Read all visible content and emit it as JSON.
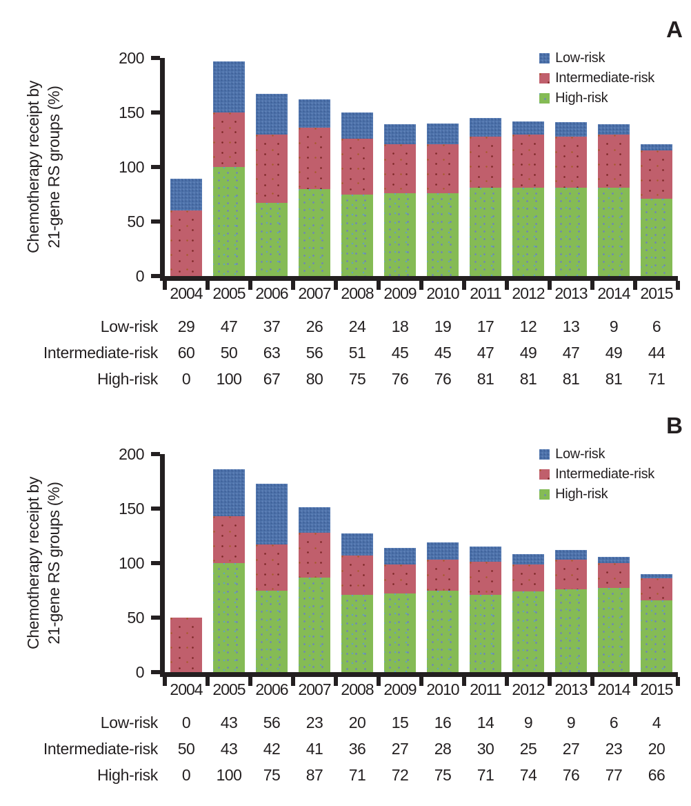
{
  "colors": {
    "low": "#4d72aa",
    "intermediate": "#c05f6c",
    "high": "#85bb55",
    "axis": "#231f20",
    "text": "#231f20",
    "background": "#ffffff"
  },
  "chart_data": [
    {
      "type": "bar",
      "stacked": true,
      "panel_label": "A",
      "title": "",
      "ylabel": [
        "Chemotherapy receipt by",
        "21-gene RS groups (%)"
      ],
      "xlabel": "",
      "ylim": [
        0,
        200
      ],
      "yticks": [
        0,
        50,
        100,
        150,
        200
      ],
      "grid": false,
      "legend_position": "top-right",
      "categories": [
        "2004",
        "2005",
        "2006",
        "2007",
        "2008",
        "2009",
        "2010",
        "2011",
        "2012",
        "2013",
        "2014",
        "2015"
      ],
      "series": [
        {
          "name": "Low-risk",
          "color_key": "low",
          "values": [
            29,
            47,
            37,
            26,
            24,
            18,
            19,
            17,
            12,
            13,
            9,
            6
          ]
        },
        {
          "name": "Intermediate-risk",
          "color_key": "intermediate",
          "values": [
            60,
            50,
            63,
            56,
            51,
            45,
            45,
            47,
            49,
            47,
            49,
            44
          ]
        },
        {
          "name": "High-risk",
          "color_key": "high",
          "values": [
            0,
            100,
            67,
            80,
            75,
            76,
            76,
            81,
            81,
            81,
            81,
            71
          ]
        }
      ],
      "stack_order_bottom_to_top": [
        "High-risk",
        "Intermediate-risk",
        "Low-risk"
      ]
    },
    {
      "type": "bar",
      "stacked": true,
      "panel_label": "B",
      "title": "",
      "ylabel": [
        "Chemotherapy receipt by",
        "21-gene RS groups (%)"
      ],
      "xlabel": "",
      "ylim": [
        0,
        200
      ],
      "yticks": [
        0,
        50,
        100,
        150,
        200
      ],
      "grid": false,
      "legend_position": "top-right",
      "categories": [
        "2004",
        "2005",
        "2006",
        "2007",
        "2008",
        "2009",
        "2010",
        "2011",
        "2012",
        "2013",
        "2014",
        "2015"
      ],
      "series": [
        {
          "name": "Low-risk",
          "color_key": "low",
          "values": [
            0,
            43,
            56,
            23,
            20,
            15,
            16,
            14,
            9,
            9,
            6,
            4
          ]
        },
        {
          "name": "Intermediate-risk",
          "color_key": "intermediate",
          "values": [
            50,
            43,
            42,
            41,
            36,
            27,
            28,
            30,
            25,
            27,
            23,
            20
          ]
        },
        {
          "name": "High-risk",
          "color_key": "high",
          "values": [
            0,
            100,
            75,
            87,
            71,
            72,
            75,
            71,
            74,
            76,
            77,
            66
          ]
        }
      ],
      "stack_order_bottom_to_top": [
        "High-risk",
        "Intermediate-risk",
        "Low-risk"
      ]
    }
  ]
}
